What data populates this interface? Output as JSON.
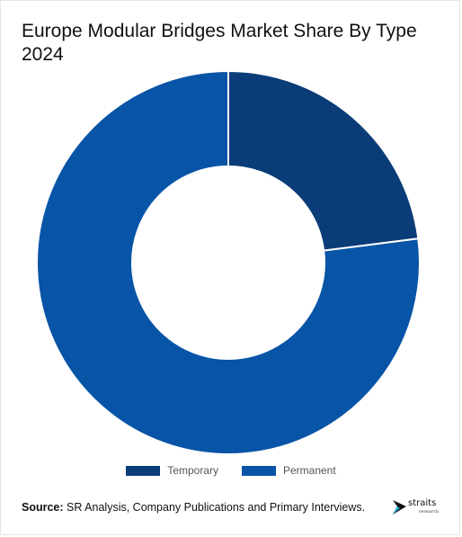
{
  "chart_data": {
    "type": "pie",
    "title": "Europe Modular Bridges Market Share By Type 2024",
    "donut": true,
    "categories": [
      "Temporary",
      "Permanent"
    ],
    "values": [
      23,
      77
    ],
    "colors": [
      "#0a3c78",
      "#0854a6"
    ],
    "legend_placement": "bottom"
  },
  "source": {
    "label": "Source:",
    "text": "SR Analysis, Company Publications and Primary Interviews."
  },
  "logo": {
    "word": "straits",
    "sub": "research",
    "icon": "straits-logo-icon"
  }
}
